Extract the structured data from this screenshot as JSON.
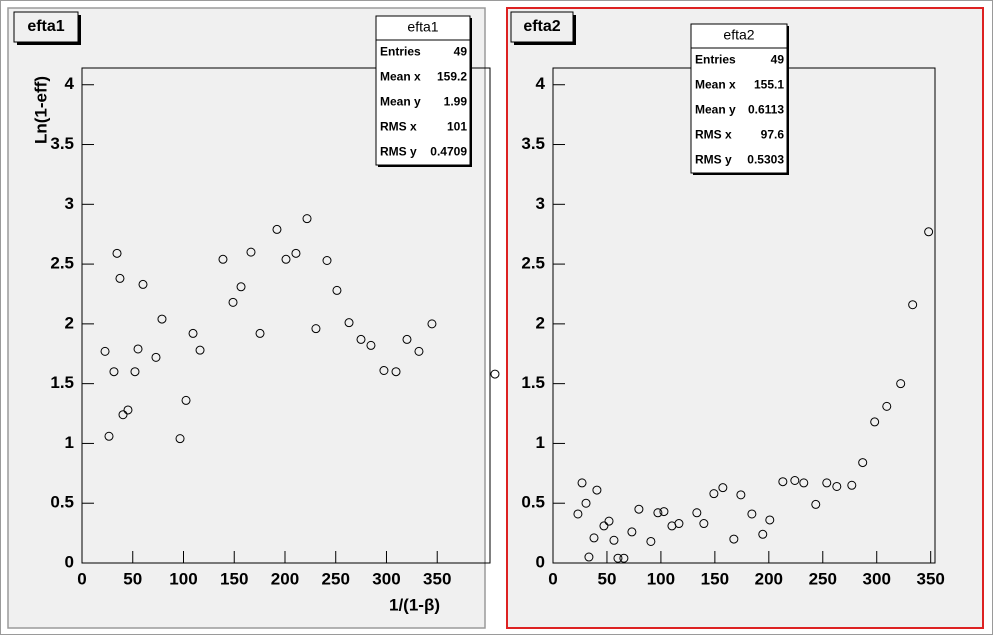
{
  "chart_data": [
    {
      "type": "scatter",
      "title": "efta1",
      "x_label": "1/(1-β)",
      "y_label": "Ln(1-eff)",
      "color": "#000000",
      "x": [
        22.7,
        26.6,
        31.5,
        34.5,
        37.4,
        40.4,
        45.3,
        52.2,
        55.2,
        60.1,
        72.9,
        78.8,
        96.6,
        102.5,
        109.4,
        116.3,
        138.9,
        148.8,
        156.7,
        166.5,
        175.4,
        192.1,
        201.0,
        210.8,
        221.7,
        230.5,
        241.4,
        251.2,
        263.1,
        274.9,
        284.7,
        297.5,
        309.4,
        320.2,
        332.0,
        344.8,
        406.9
      ],
      "values": [
        1.77,
        1.06,
        1.6,
        2.59,
        2.38,
        1.24,
        1.28,
        1.6,
        1.79,
        2.33,
        1.72,
        2.04,
        1.04,
        1.36,
        1.92,
        1.78,
        2.54,
        2.18,
        2.31,
        2.6,
        1.92,
        2.79,
        2.54,
        2.59,
        2.88,
        1.96,
        2.53,
        2.28,
        2.01,
        1.87,
        1.82,
        1.61,
        1.6,
        1.87,
        1.77,
        2.0,
        1.58
      ],
      "xlim": [
        0,
        402
      ],
      "ylim": [
        0,
        4.14
      ],
      "xticks": [
        0,
        50,
        100,
        150,
        200,
        250,
        300,
        350
      ],
      "yticks": [
        0,
        0.5,
        1,
        1.5,
        2,
        2.5,
        3,
        3.5,
        4
      ],
      "stats": {
        "title": "efta1",
        "rows": [
          [
            "Entries",
            "49"
          ],
          [
            "Mean x",
            "159.2"
          ],
          [
            "Mean y",
            "1.99"
          ],
          [
            "RMS x",
            "101"
          ],
          [
            "RMS y",
            "0.4709"
          ]
        ]
      }
    },
    {
      "type": "scatter",
      "title": "efta2",
      "color": "#000000",
      "x": [
        23.1,
        26.9,
        30.6,
        33.3,
        38.0,
        40.7,
        47.2,
        51.9,
        56.5,
        60.2,
        65.7,
        73.1,
        79.6,
        90.7,
        97.2,
        102.8,
        110.2,
        116.7,
        133.3,
        139.8,
        149.1,
        157.4,
        167.6,
        174.1,
        184.3,
        194.4,
        200.9,
        213.0,
        224.1,
        232.4,
        243.5,
        253.7,
        263.0,
        276.9,
        287.0,
        298.1,
        309.3,
        322.2,
        333.3,
        348.1
      ],
      "values": [
        0.41,
        0.67,
        0.5,
        0.05,
        0.21,
        0.61,
        0.31,
        0.35,
        0.19,
        0.04,
        0.04,
        0.26,
        0.45,
        0.18,
        0.42,
        0.43,
        0.31,
        0.33,
        0.42,
        0.33,
        0.58,
        0.63,
        0.2,
        0.57,
        0.41,
        0.24,
        0.36,
        0.68,
        0.69,
        0.67,
        0.49,
        0.67,
        0.64,
        0.65,
        0.84,
        1.18,
        1.31,
        1.5,
        2.16,
        2.77
      ],
      "xlim": [
        0,
        354
      ],
      "ylim": [
        0,
        4.14
      ],
      "xticks": [
        0,
        50,
        100,
        150,
        200,
        250,
        300,
        350
      ],
      "yticks": [
        0,
        0.5,
        1,
        1.5,
        2,
        2.5,
        3,
        3.5,
        4
      ],
      "stats": {
        "title": "efta2",
        "rows": [
          [
            "Entries",
            "49"
          ],
          [
            "Mean x",
            "155.1"
          ],
          [
            "Mean y",
            "0.6113"
          ],
          [
            "RMS x",
            "97.6"
          ],
          [
            "RMS y",
            "0.5303"
          ]
        ]
      }
    }
  ]
}
